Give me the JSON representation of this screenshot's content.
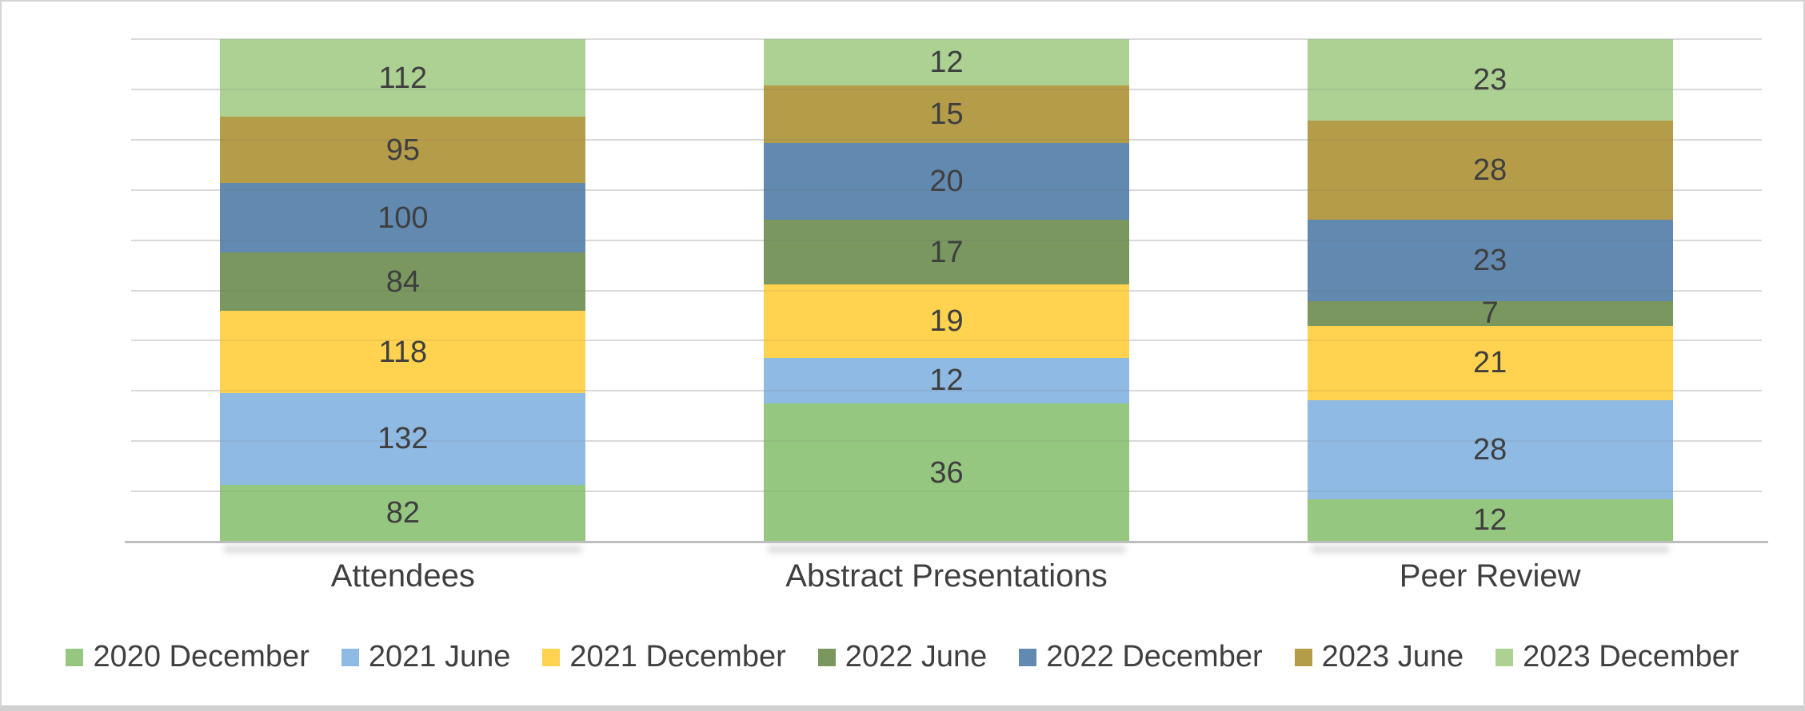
{
  "chart_data": {
    "type": "bar",
    "subtype": "stacked-100-percent-column",
    "title": "",
    "xlabel": "",
    "ylabel": "",
    "categories": [
      "Attendees",
      "Abstract Presentations",
      "Peer Review"
    ],
    "series": [
      {
        "name": "2020 December",
        "color": "#96C780",
        "values": [
          82,
          36,
          12
        ]
      },
      {
        "name": "2021 June",
        "color": "#8FBAE3",
        "values": [
          132,
          12,
          28
        ]
      },
      {
        "name": "2021 December",
        "color": "#FFD24F",
        "values": [
          118,
          19,
          21
        ]
      },
      {
        "name": "2022 June",
        "color": "#79975F",
        "values": [
          84,
          17,
          7
        ]
      },
      {
        "name": "2022 December",
        "color": "#6289B0",
        "values": [
          100,
          20,
          23
        ]
      },
      {
        "name": "2023 June",
        "color": "#B59C49",
        "values": [
          95,
          15,
          28
        ]
      },
      {
        "name": "2023 December",
        "color": "#ACD193",
        "values": [
          112,
          12,
          23
        ]
      }
    ],
    "data_labels": true,
    "label_color": "#3F3F3F",
    "grid": true,
    "gridline_count": 11,
    "gridline_color": "#E7E7E7",
    "axis_line_color": "#BDBDBD",
    "ylim": [
      0,
      100
    ],
    "y_axis_labels_visible": false,
    "legend_position": "bottom"
  }
}
